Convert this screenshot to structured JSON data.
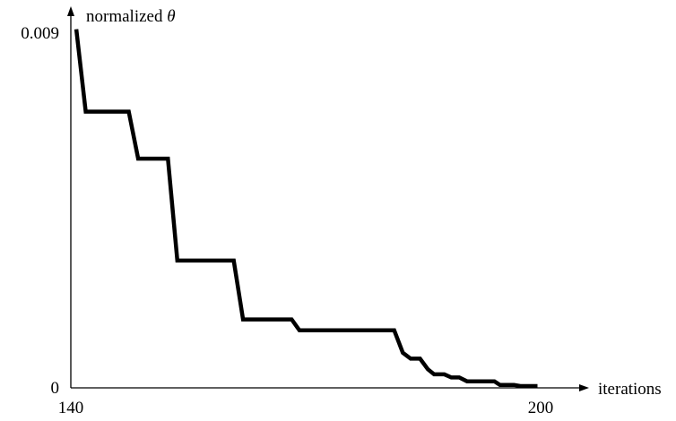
{
  "chart_data": {
    "type": "line",
    "title": "",
    "xlabel": "iterations",
    "ylabel_text": "normalized ",
    "ylabel_symbol": "θ",
    "xlim": [
      140,
      200
    ],
    "ylim": [
      0,
      0.009
    ],
    "x_ticks": [
      {
        "value": 140,
        "label": "140"
      },
      {
        "value": 200,
        "label": "200"
      }
    ],
    "y_ticks": [
      {
        "value": 0,
        "label": "0"
      },
      {
        "value": 0.009,
        "label": "0.009"
      }
    ],
    "grid": false,
    "legend": "none",
    "line_color": "#000000",
    "series": [
      {
        "x": [
          140.7,
          141.9,
          147.4,
          148.6,
          152.4,
          153.6,
          160.8,
          162.0,
          168.0,
          168.2,
          169.2,
          181.3,
          182.4,
          183.4,
          184.6,
          185.6,
          186.4,
          187.7,
          188.6,
          189.6,
          190.6,
          191.8,
          194.1,
          194.8,
          196.6,
          197.4,
          199.6
        ],
        "y": [
          0.0091,
          0.007,
          0.007,
          0.0058,
          0.0058,
          0.0032,
          0.0032,
          0.0017,
          0.0017,
          0.0017,
          0.00142,
          0.00142,
          0.00085,
          0.0007,
          0.0007,
          0.00043,
          0.0003,
          0.0003,
          0.00022,
          0.00022,
          0.00012,
          0.00012,
          0.00012,
          3e-05,
          3e-05,
          0.0,
          0.0
        ]
      }
    ]
  }
}
